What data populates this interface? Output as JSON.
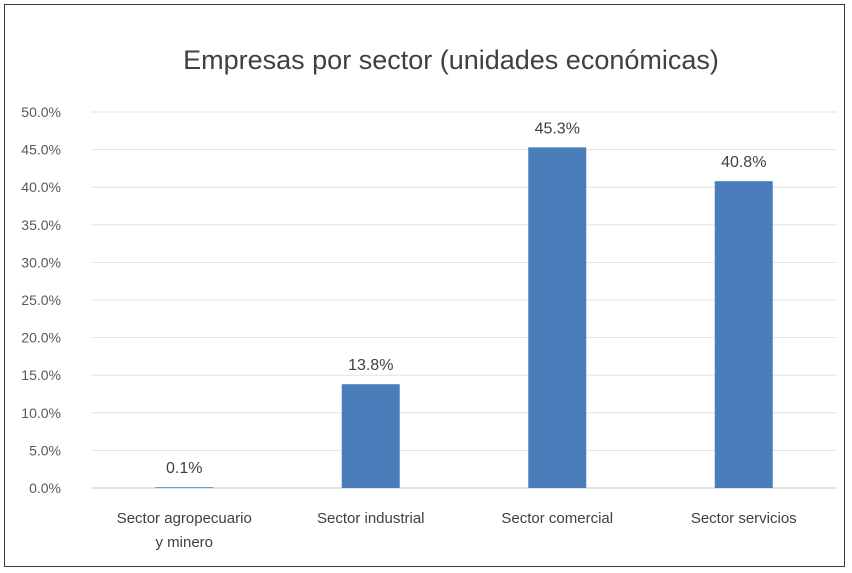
{
  "chart_data": {
    "type": "bar",
    "title": "Empresas por sector (unidades económicas)",
    "xlabel": "",
    "ylabel": "",
    "categories": [
      [
        "Sector agropecuario",
        "y minero"
      ],
      [
        "Sector industrial"
      ],
      [
        "Sector comercial"
      ],
      [
        "Sector servicios"
      ]
    ],
    "values": [
      0.1,
      13.8,
      45.3,
      40.8
    ],
    "data_labels": [
      "0.1%",
      "13.8%",
      "45.3%",
      "40.8%"
    ],
    "ylim": [
      0,
      50
    ],
    "yticks": [
      0,
      5,
      10,
      15,
      20,
      25,
      30,
      35,
      40,
      45,
      50
    ],
    "ytick_labels": [
      "0.0%",
      "5.0%",
      "10.0%",
      "15.0%",
      "20.0%",
      "25.0%",
      "30.0%",
      "35.0%",
      "40.0%",
      "45.0%",
      "50.0%"
    ],
    "grid": true,
    "legend": "none",
    "bar_color": "#4a7ebb"
  }
}
